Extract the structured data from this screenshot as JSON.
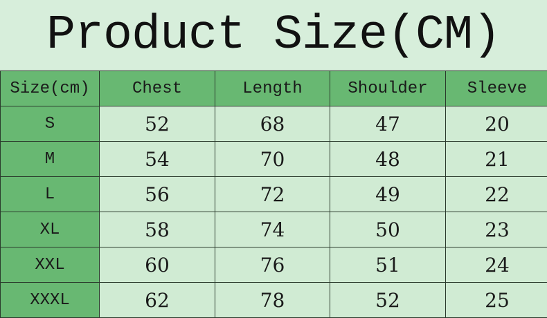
{
  "title": "Product Size(CM)",
  "table": {
    "headers": [
      "Size(cm)",
      "Chest",
      "Length",
      "Shoulder",
      "Sleeve"
    ],
    "rows": [
      [
        "S",
        "52",
        "68",
        "47",
        "20"
      ],
      [
        "M",
        "54",
        "70",
        "48",
        "21"
      ],
      [
        "L",
        "56",
        "72",
        "49",
        "22"
      ],
      [
        "XL",
        "58",
        "74",
        "50",
        "23"
      ],
      [
        "XXL",
        "60",
        "76",
        "51",
        "24"
      ],
      [
        "XXXL",
        "62",
        "78",
        "52",
        "25"
      ]
    ]
  },
  "colors": {
    "background": "#d7eedb",
    "header": "#68b872",
    "cell": "#d0ebd3"
  }
}
